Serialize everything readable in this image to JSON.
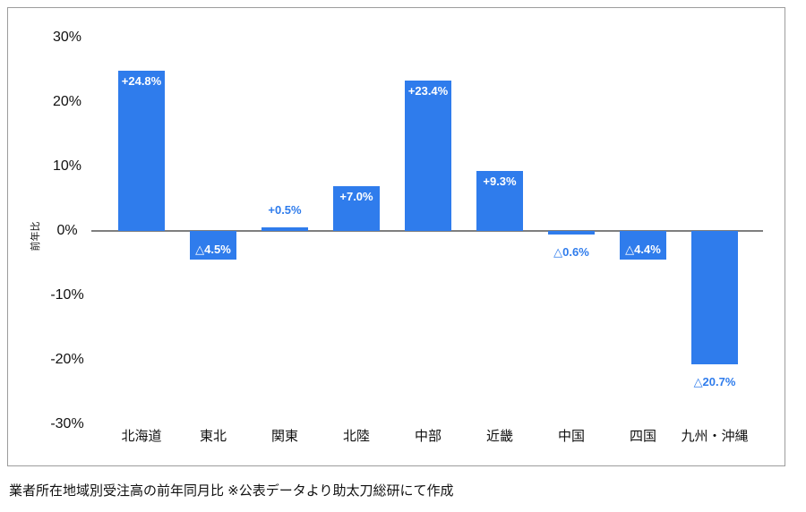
{
  "caption": "業者所在地域別受注高の前年同月比 ※公表データより助太刀総研にて作成",
  "colors": {
    "bar": "#2F7CEC",
    "value_label_on_bar": "#FFFFFF",
    "value_label_outside": "#2F7CEC",
    "axis_line": "#7F7F7F",
    "frame_border": "#9C9C9C",
    "axis_text": "#111111",
    "caption_text": "#111111",
    "background": "#FFFFFF"
  },
  "chart_data": {
    "type": "bar",
    "title": "",
    "xlabel": "",
    "ylabel": "前年比",
    "ylim": [
      -30,
      30
    ],
    "grid": false,
    "legend": "none",
    "categories": [
      "北海道",
      "東北",
      "関東",
      "北陸",
      "中部",
      "近畿",
      "中国",
      "四国",
      "九州・沖縄"
    ],
    "category_slugs": [
      "hokkaido",
      "tohoku",
      "kanto",
      "hokuriku",
      "chubu",
      "kinki",
      "chugoku",
      "shikoku",
      "kyushu-okinawa"
    ],
    "values": [
      24.8,
      -4.5,
      0.5,
      7.0,
      23.4,
      9.3,
      -0.6,
      -4.4,
      -20.7
    ],
    "point_labels": [
      {
        "text": "+24.8%",
        "placement": "inside-top"
      },
      {
        "text": "△4.5%",
        "placement": "inside-bottom"
      },
      {
        "text": "+0.5%",
        "placement": "above"
      },
      {
        "text": "+7.0%",
        "placement": "inside-top"
      },
      {
        "text": "+23.4%",
        "placement": "inside-top"
      },
      {
        "text": "+9.3%",
        "placement": "inside-top"
      },
      {
        "text": "△0.6%",
        "placement": "below"
      },
      {
        "text": "△4.4%",
        "placement": "inside-bottom"
      },
      {
        "text": "△20.7%",
        "placement": "below"
      }
    ],
    "yticks": [
      {
        "value": 30,
        "label": "30%"
      },
      {
        "value": 20,
        "label": "20%"
      },
      {
        "value": 10,
        "label": "10%"
      },
      {
        "value": 0,
        "label": "0%"
      },
      {
        "value": -10,
        "label": "-10%"
      },
      {
        "value": -20,
        "label": "-20%"
      },
      {
        "value": -30,
        "label": "-30%"
      }
    ]
  }
}
